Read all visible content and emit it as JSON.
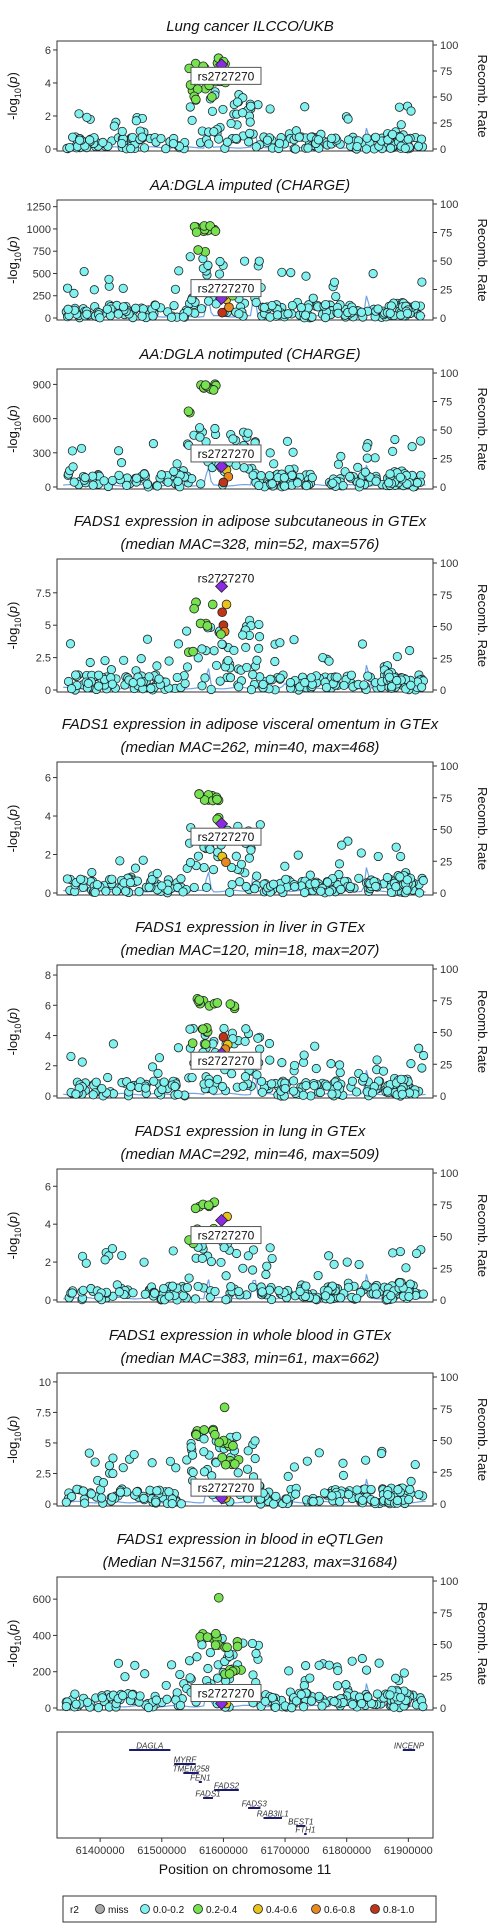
{
  "chart_data": {
    "type": "scatter",
    "x_axis": {
      "label": "Position on chromosome 11",
      "ticks": [
        61400000,
        61500000,
        61600000,
        61700000,
        61800000,
        61900000
      ],
      "range": [
        61330000,
        61940000
      ]
    },
    "recomb_axis": {
      "label": "Recomb. Rate",
      "ticks": [
        0,
        25,
        50,
        75,
        100
      ]
    },
    "y_label_parts": [
      "-log",
      "10",
      "(",
      "p",
      ")"
    ],
    "lead_snp": "rs2727270",
    "lead_x": 61597000,
    "legend": {
      "title": "r2",
      "entries": [
        {
          "label": "miss",
          "color": "#aaaaaa"
        },
        {
          "label": "0.0-0.2",
          "color": "#7ff2f0"
        },
        {
          "label": "0.2-0.4",
          "color": "#77e24f"
        },
        {
          "label": "0.4-0.6",
          "color": "#e9c21a"
        },
        {
          "label": "0.6-0.8",
          "color": "#e8891f"
        },
        {
          "label": "0.8-1.0",
          "color": "#c0351a"
        }
      ]
    },
    "panels": [
      {
        "title": [
          "Lung cancer ILCCO/UKB"
        ],
        "yticks": [
          0,
          2,
          4,
          6
        ],
        "ymax": 6.3,
        "lead": 5.1,
        "label_at": 4.4,
        "seed": 3,
        "high": [
          {
            "x": 61560000,
            "y": 5.0,
            "n": 4
          },
          {
            "x": 61590000,
            "y": 5.3,
            "n": 2
          },
          {
            "x": 61560000,
            "y": 3.7,
            "n": 6
          },
          {
            "x": 61600000,
            "y": 4.2,
            "n": 5
          },
          {
            "x": 61570000,
            "y": 3.0,
            "n": 3
          }
        ],
        "colored": [
          {
            "x": 61592000,
            "y": 5.5,
            "c": 2
          },
          {
            "x": 61600000,
            "y": 5.3,
            "c": 2
          }
        ]
      },
      {
        "title": [
          "AA:DGLA imputed (CHARGE)"
        ],
        "yticks": [
          0,
          250,
          500,
          750,
          1000,
          1250
        ],
        "ymax": 1280,
        "lead": 220,
        "label_at": 330,
        "seed": 7,
        "high": [
          {
            "x": 61570000,
            "y": 1000,
            "n": 12
          },
          {
            "x": 61560000,
            "y": 780,
            "n": 2
          }
        ],
        "colored": [
          {
            "x": 61605000,
            "y": 210,
            "c": 3
          },
          {
            "x": 61609000,
            "y": 120,
            "c": 4
          },
          {
            "x": 61598000,
            "y": 60,
            "c": 5
          },
          {
            "x": 61615000,
            "y": 250,
            "c": 2
          }
        ]
      },
      {
        "title": [
          "AA:DGLA notimputed (CHARGE)"
        ],
        "yticks": [
          0,
          300,
          600,
          900
        ],
        "ymax": 1000,
        "lead": 180,
        "label_at": 290,
        "seed": 11,
        "high": [
          {
            "x": 61570000,
            "y": 880,
            "n": 10
          },
          {
            "x": 61560000,
            "y": 640,
            "n": 2
          }
        ],
        "colored": [
          {
            "x": 61605000,
            "y": 150,
            "c": 3
          },
          {
            "x": 61608000,
            "y": 90,
            "c": 4
          },
          {
            "x": 61600000,
            "y": 40,
            "c": 5
          }
        ]
      },
      {
        "title": [
          "FADS1 expression in adipose subcutaneous in GTEx",
          "(median MAC=328, min=52, max=576)"
        ],
        "yticks": [
          0,
          2.5,
          5,
          7.5
        ],
        "ymax": 9.8,
        "lead": 8.0,
        "label_at": 8.6,
        "seed": 19,
        "high": [
          {
            "x": 61570000,
            "y": 6.5,
            "n": 4
          },
          {
            "x": 61575000,
            "y": 5.0,
            "n": 3
          },
          {
            "x": 61560000,
            "y": 2.8,
            "n": 2
          }
        ],
        "colored": [
          {
            "x": 61605000,
            "y": 6.6,
            "c": 3
          },
          {
            "x": 61598000,
            "y": 6.0,
            "c": 5
          },
          {
            "x": 61600000,
            "y": 5.0,
            "c": 5
          },
          {
            "x": 61602000,
            "y": 4.5,
            "c": 4
          },
          {
            "x": 61596000,
            "y": 4.3,
            "c": 2
          }
        ]
      },
      {
        "title": [
          "FADS1 expression in adipose visceral omentum in GTEx",
          "(median MAC=262, min=40, max=468)"
        ],
        "yticks": [
          0,
          2,
          4,
          6
        ],
        "ymax": 6.6,
        "lead": 3.6,
        "label_at": 2.9,
        "seed": 23,
        "high": [
          {
            "x": 61575000,
            "y": 5.0,
            "n": 10
          },
          {
            "x": 61600000,
            "y": 4.0,
            "n": 2
          }
        ],
        "colored": [
          {
            "x": 61598000,
            "y": 1.9,
            "c": 3
          },
          {
            "x": 61604000,
            "y": 1.6,
            "c": 4
          }
        ]
      },
      {
        "title": [
          "FADS1 expression in liver in GTEx",
          "(median MAC=120, min=18, max=207)"
        ],
        "yticks": [
          0,
          2,
          4,
          6,
          8
        ],
        "ymax": 8.4,
        "lead": 2.8,
        "label_at": 2.3,
        "seed": 29,
        "high": [
          {
            "x": 61570000,
            "y": 6.2,
            "n": 7
          },
          {
            "x": 61575000,
            "y": 4.4,
            "n": 4
          },
          {
            "x": 61605000,
            "y": 6.0,
            "n": 4
          },
          {
            "x": 61560000,
            "y": 3.6,
            "n": 2
          }
        ],
        "colored": [
          {
            "x": 61600000,
            "y": 3.9,
            "c": 5
          },
          {
            "x": 61607000,
            "y": 3.4,
            "c": 3
          },
          {
            "x": 61603000,
            "y": 3.1,
            "c": 4
          }
        ]
      },
      {
        "title": [
          "FADS1 expression in lung in GTEx",
          "(median MAC=292, min=46, max=509)"
        ],
        "yticks": [
          0,
          2,
          4,
          6
        ],
        "ymax": 6.7,
        "lead": 4.2,
        "label_at": 3.4,
        "seed": 31,
        "high": [
          {
            "x": 61570000,
            "y": 5.0,
            "n": 7
          },
          {
            "x": 61575000,
            "y": 3.8,
            "n": 3
          },
          {
            "x": 61560000,
            "y": 3.0,
            "n": 2
          }
        ],
        "colored": [
          {
            "x": 61606000,
            "y": 4.4,
            "c": 3
          }
        ]
      },
      {
        "title": [
          "FADS1 expression in whole blood in GTEx",
          "(median MAC=383, min=61, max=662)"
        ],
        "yticks": [
          0,
          2.5,
          5,
          7.5,
          10
        ],
        "ymax": 10.4,
        "lead": 0.5,
        "label_at": 1.3,
        "seed": 37,
        "high": [
          {
            "x": 61572000,
            "y": 5.8,
            "n": 7
          },
          {
            "x": 61590000,
            "y": 8.0,
            "n": 1
          },
          {
            "x": 61600000,
            "y": 5.0,
            "n": 6
          },
          {
            "x": 61615000,
            "y": 3.5,
            "n": 6
          }
        ],
        "colored": [
          {
            "x": 61604000,
            "y": 0.5,
            "c": 3
          }
        ]
      },
      {
        "title": [
          "FADS1 expression in blood in eQTLGen",
          "(Median N=31567, min=21283, max=31684)"
        ],
        "yticks": [
          0,
          200,
          400,
          600
        ],
        "ymax": 700,
        "lead": 25,
        "label_at": 80,
        "seed": 41,
        "high": [
          {
            "x": 61575000,
            "y": 400,
            "n": 8
          },
          {
            "x": 61590000,
            "y": 600,
            "n": 1
          },
          {
            "x": 61605000,
            "y": 350,
            "n": 6
          },
          {
            "x": 61620000,
            "y": 200,
            "n": 6
          }
        ],
        "colored": [
          {
            "x": 61605000,
            "y": 25,
            "c": 3
          }
        ]
      }
    ],
    "genes": [
      {
        "name": "DAGLA",
        "start": 61447000,
        "end": 61514000,
        "row": 0
      },
      {
        "name": "INCENP",
        "start": 61891000,
        "end": 61911000,
        "row": 0
      },
      {
        "name": "MYRF",
        "start": 61520000,
        "end": 61555000,
        "row": 1
      },
      {
        "name": "TMEM258",
        "start": 61535000,
        "end": 61560000,
        "row": 2
      },
      {
        "name": "FEN1",
        "start": 61560000,
        "end": 61565000,
        "row": 3
      },
      {
        "name": "FADS2",
        "start": 61585000,
        "end": 61625000,
        "row": 4
      },
      {
        "name": "FADS1",
        "start": 61567000,
        "end": 61583000,
        "row": 5
      },
      {
        "name": "FADS3",
        "start": 61640000,
        "end": 61660000,
        "row": 6
      },
      {
        "name": "RAB3IL1",
        "start": 61665000,
        "end": 61695000,
        "row": 7
      },
      {
        "name": "BEST1",
        "start": 61718000,
        "end": 61733000,
        "row": 8
      },
      {
        "name": "FTH1",
        "start": 61731000,
        "end": 61735000,
        "row": 9
      }
    ]
  }
}
